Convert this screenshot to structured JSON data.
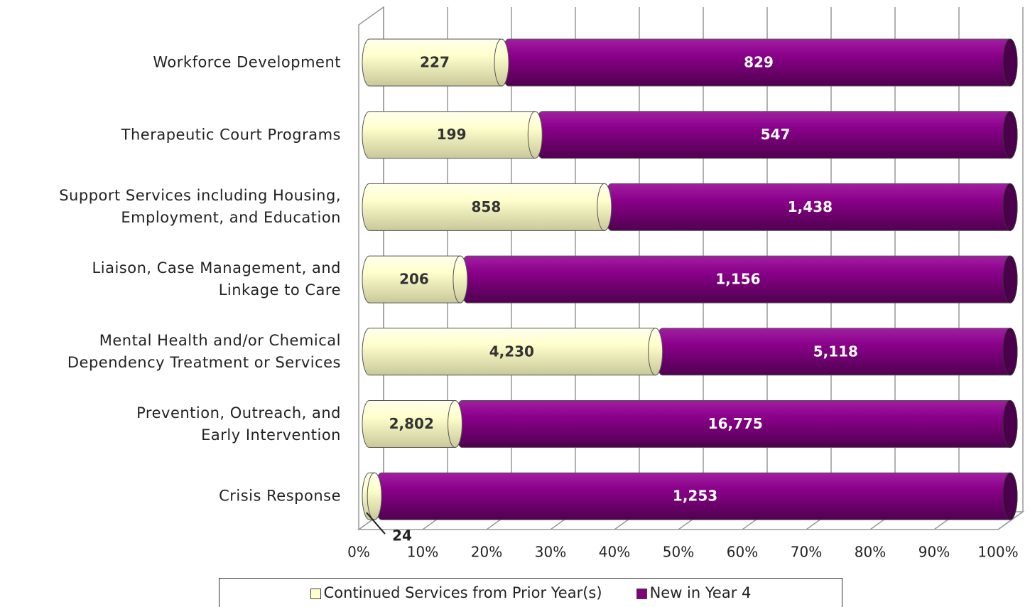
{
  "chart_data": {
    "type": "bar",
    "orientation": "horizontal",
    "stacking": "percent",
    "categories": [
      "Workforce Development",
      "Therapeutic Court Programs",
      "Support Services including Housing,\nEmployment, and Education",
      "Liaison, Case Management, and\nLinkage to Care",
      "Mental Health and/or Chemical\nDependency Treatment or Services",
      "Prevention, Outreach, and\nEarly Intervention",
      "Crisis Response"
    ],
    "series": [
      {
        "name": "Continued Services from Prior Year(s)",
        "color": "#ffffcc",
        "values": [
          227,
          199,
          858,
          206,
          4230,
          2802,
          24
        ],
        "value_labels": [
          "227",
          "199",
          "858",
          "206",
          "4,230",
          "2,802",
          "24"
        ]
      },
      {
        "name": "New in Year 4",
        "color": "#800080",
        "values": [
          829,
          547,
          1438,
          1156,
          5118,
          16775,
          1253
        ],
        "value_labels": [
          "829",
          "547",
          "1,438",
          "1,156",
          "5,118",
          "16,775",
          "1,253"
        ]
      }
    ],
    "xlim": [
      0,
      100
    ],
    "xticks": [
      {
        "value": 0,
        "label": "0%"
      },
      {
        "value": 10,
        "label": "10%"
      },
      {
        "value": 20,
        "label": "20%"
      },
      {
        "value": 30,
        "label": "30%"
      },
      {
        "value": 40,
        "label": "40%"
      },
      {
        "value": 50,
        "label": "50%"
      },
      {
        "value": 60,
        "label": "60%"
      },
      {
        "value": 70,
        "label": "70%"
      },
      {
        "value": 80,
        "label": "80%"
      },
      {
        "value": 90,
        "label": "90%"
      },
      {
        "value": 100,
        "label": "100%"
      }
    ],
    "grid": true,
    "legend": "bottom"
  }
}
